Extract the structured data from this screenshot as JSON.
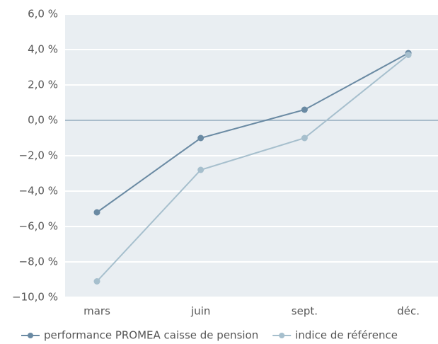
{
  "chart_data": {
    "type": "line",
    "categories": [
      "mars",
      "juin",
      "sept.",
      "déc."
    ],
    "series": [
      {
        "name": "performance PROMEA caisse de pension",
        "color": "#6a8aa3",
        "values": [
          -5.2,
          -1.0,
          0.6,
          3.8
        ]
      },
      {
        "name": "indice de référence",
        "color": "#a6bfcd",
        "values": [
          -9.1,
          -2.8,
          -1.0,
          3.7
        ]
      }
    ],
    "ylim": [
      -10,
      6
    ],
    "yticks": [
      {
        "value": -10,
        "label": "−10,0 %"
      },
      {
        "value": -8,
        "label": "−8,0 %"
      },
      {
        "value": -6,
        "label": "−6,0 %"
      },
      {
        "value": -4,
        "label": "−4,0 %"
      },
      {
        "value": -2,
        "label": "−2,0 %"
      },
      {
        "value": 0,
        "label": "0,0 %"
      },
      {
        "value": 2,
        "label": "2,0 %"
      },
      {
        "value": 4,
        "label": "4,0 %"
      },
      {
        "value": 6,
        "label": "6,0 %"
      }
    ],
    "grid": true,
    "legend": "bottom"
  }
}
